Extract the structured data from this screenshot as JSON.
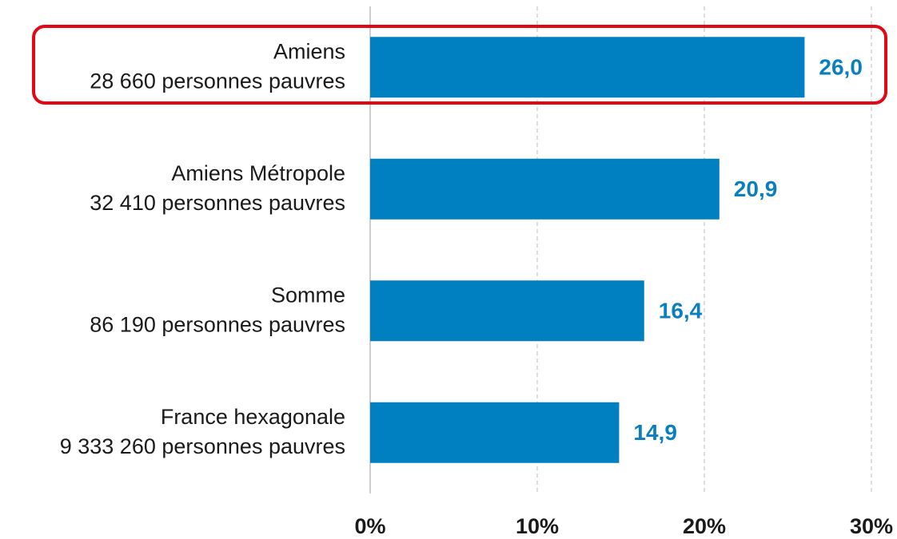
{
  "chart_data": {
    "type": "bar",
    "orientation": "horizontal",
    "categories": [
      [
        "Amiens",
        "28 660 personnes pauvres"
      ],
      [
        "Amiens Métropole",
        "32 410 personnes pauvres"
      ],
      [
        "Somme",
        "86 190 personnes pauvres"
      ],
      [
        "France hexagonale",
        "9 333 260 personnes pauvres"
      ]
    ],
    "values": [
      26.0,
      20.9,
      16.4,
      14.9
    ],
    "value_labels": [
      "26,0",
      "20,9",
      "16,4",
      "14,9"
    ],
    "color": "#0080c0",
    "xlim": [
      0,
      30
    ],
    "xticks": [
      {
        "value": 0,
        "label": "0%"
      },
      {
        "value": 10,
        "label": "10%"
      },
      {
        "value": 20,
        "label": "20%"
      },
      {
        "value": 30,
        "label": "30%"
      }
    ],
    "grid": true
  }
}
